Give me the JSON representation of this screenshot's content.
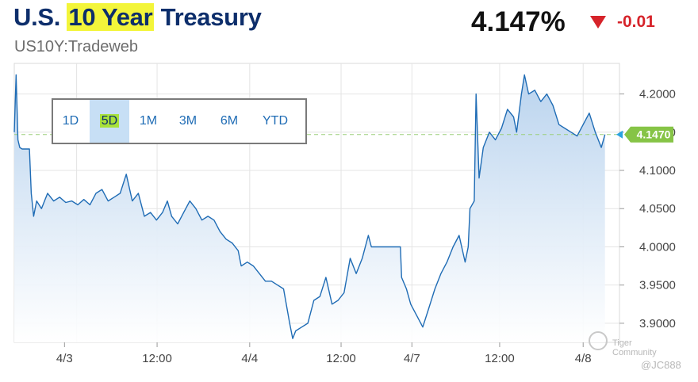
{
  "header": {
    "title_prefix": "U.S. ",
    "title_highlight": "10 Year",
    "title_suffix": " Treasury",
    "subtitle": "US10Y:Tradeweb",
    "price": "4.147%",
    "change": "-0.01"
  },
  "range_selector": {
    "options": [
      "1D",
      "5D",
      "1M",
      "3M",
      "6M",
      "YTD"
    ],
    "selected": "5D"
  },
  "watermark": {
    "text": "Tiger Community",
    "user": "@JC888"
  },
  "colors": {
    "line": "#1f6cb5",
    "area_top": "#b9d3ee",
    "area_bottom": "#ffffff",
    "last_price_label": "#86c446",
    "down": "#d6232a",
    "title": "#0d2e6b"
  },
  "chart_data": {
    "type": "area",
    "title": "U.S. 10 Year Treasury",
    "ylim": [
      3.875,
      4.24
    ],
    "yticks": [
      "4.2000",
      "4.1500",
      "4.1000",
      "4.0500",
      "4.0000",
      "3.9500",
      "3.9000"
    ],
    "ytick_values": [
      4.2,
      4.15,
      4.1,
      4.05,
      4.0,
      3.95,
      3.9
    ],
    "xlim": [
      0,
      100
    ],
    "xticks": [
      "4/3",
      "12:00",
      "4/4",
      "12:00",
      "4/7",
      "12:00",
      "4/8"
    ],
    "xtick_positions": [
      8.3,
      23.6,
      38.9,
      54.0,
      65.7,
      80.2,
      94.0
    ],
    "vgrid_positions": [
      10.3,
      23.6,
      38.9,
      54.0,
      65.7,
      80.2,
      94.0
    ],
    "last_price": 4.147,
    "last_price_label": "4.1470",
    "reference_line": 4.147,
    "series": [
      {
        "values": [
          [
            0.0,
            4.15
          ],
          [
            0.3,
            4.225
          ],
          [
            0.6,
            4.14
          ],
          [
            0.9,
            4.13
          ],
          [
            1.3,
            4.128
          ],
          [
            2.0,
            4.128
          ],
          [
            2.5,
            4.128
          ],
          [
            2.8,
            4.07
          ],
          [
            3.2,
            4.04
          ],
          [
            3.7,
            4.06
          ],
          [
            4.5,
            4.05
          ],
          [
            5.5,
            4.07
          ],
          [
            6.5,
            4.06
          ],
          [
            7.5,
            4.065
          ],
          [
            8.5,
            4.058
          ],
          [
            9.5,
            4.06
          ],
          [
            10.5,
            4.055
          ],
          [
            11.5,
            4.062
          ],
          [
            12.5,
            4.055
          ],
          [
            13.5,
            4.07
          ],
          [
            14.5,
            4.075
          ],
          [
            15.5,
            4.06
          ],
          [
            16.5,
            4.065
          ],
          [
            17.5,
            4.07
          ],
          [
            18.5,
            4.095
          ],
          [
            19.5,
            4.06
          ],
          [
            20.5,
            4.07
          ],
          [
            21.5,
            4.04
          ],
          [
            22.5,
            4.045
          ],
          [
            23.5,
            4.035
          ],
          [
            24.5,
            4.045
          ],
          [
            25.3,
            4.06
          ],
          [
            26.0,
            4.04
          ],
          [
            27.0,
            4.03
          ],
          [
            28.0,
            4.045
          ],
          [
            29.0,
            4.06
          ],
          [
            30.0,
            4.05
          ],
          [
            31.0,
            4.035
          ],
          [
            32.0,
            4.04
          ],
          [
            33.0,
            4.035
          ],
          [
            34.0,
            4.02
          ],
          [
            35.0,
            4.01
          ],
          [
            36.0,
            4.005
          ],
          [
            37.0,
            3.995
          ],
          [
            37.5,
            3.975
          ],
          [
            38.5,
            3.98
          ],
          [
            39.5,
            3.975
          ],
          [
            40.5,
            3.965
          ],
          [
            41.5,
            3.955
          ],
          [
            42.5,
            3.955
          ],
          [
            43.5,
            3.95
          ],
          [
            44.5,
            3.945
          ],
          [
            45.5,
            3.9
          ],
          [
            46.0,
            3.88
          ],
          [
            46.5,
            3.89
          ],
          [
            47.5,
            3.895
          ],
          [
            48.5,
            3.9
          ],
          [
            49.5,
            3.93
          ],
          [
            50.5,
            3.935
          ],
          [
            51.5,
            3.96
          ],
          [
            52.5,
            3.925
          ],
          [
            53.5,
            3.93
          ],
          [
            54.5,
            3.94
          ],
          [
            55.5,
            3.985
          ],
          [
            56.5,
            3.965
          ],
          [
            57.5,
            3.985
          ],
          [
            58.5,
            4.015
          ],
          [
            59.0,
            4.0
          ],
          [
            60.5,
            4.0
          ],
          [
            62.0,
            4.0
          ],
          [
            63.8,
            4.0
          ],
          [
            64.0,
            3.96
          ],
          [
            64.8,
            3.945
          ],
          [
            65.5,
            3.925
          ],
          [
            66.5,
            3.91
          ],
          [
            67.5,
            3.895
          ],
          [
            68.5,
            3.92
          ],
          [
            69.5,
            3.945
          ],
          [
            70.5,
            3.965
          ],
          [
            71.5,
            3.98
          ],
          [
            72.5,
            4.0
          ],
          [
            73.5,
            4.015
          ],
          [
            74.5,
            3.98
          ],
          [
            75.0,
            4.0
          ],
          [
            75.3,
            4.05
          ],
          [
            76.0,
            4.06
          ],
          [
            76.3,
            4.2
          ],
          [
            76.8,
            4.09
          ],
          [
            77.5,
            4.13
          ],
          [
            78.5,
            4.15
          ],
          [
            79.5,
            4.14
          ],
          [
            80.5,
            4.155
          ],
          [
            81.5,
            4.18
          ],
          [
            82.5,
            4.17
          ],
          [
            83.0,
            4.15
          ],
          [
            83.8,
            4.2
          ],
          [
            84.3,
            4.225
          ],
          [
            85.0,
            4.2
          ],
          [
            86.0,
            4.205
          ],
          [
            87.0,
            4.19
          ],
          [
            88.0,
            4.2
          ],
          [
            89.0,
            4.185
          ],
          [
            90.0,
            4.16
          ],
          [
            91.0,
            4.155
          ],
          [
            92.0,
            4.15
          ],
          [
            93.0,
            4.145
          ],
          [
            94.0,
            4.16
          ],
          [
            95.0,
            4.175
          ],
          [
            96.0,
            4.15
          ],
          [
            97.0,
            4.13
          ],
          [
            97.6,
            4.147
          ]
        ]
      }
    ]
  }
}
